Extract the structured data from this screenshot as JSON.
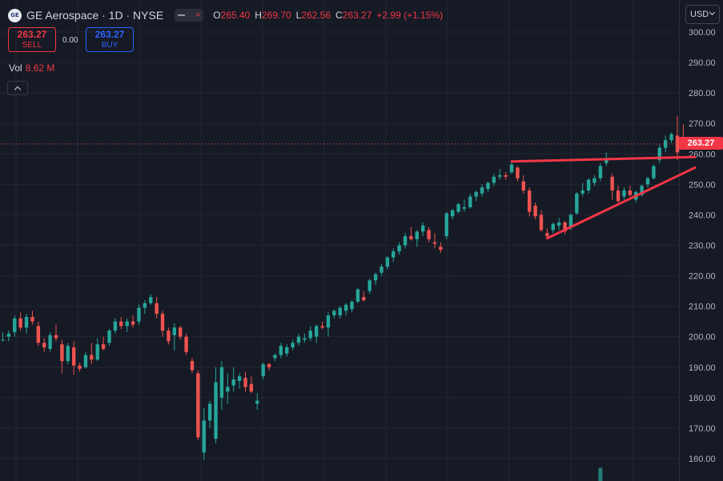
{
  "header": {
    "logo_text": "GE",
    "symbol": "GE Aerospace · 1D · NYSE",
    "ohlc": {
      "o_label": "O",
      "o_value": "265.40",
      "h_label": "H",
      "h_value": "269.70",
      "l_label": "L",
      "l_value": "262.56",
      "c_label": "C",
      "c_value": "263.27",
      "change": "+2.99 (+1.15%)"
    }
  },
  "trade": {
    "sell_price": "263.27",
    "sell_label": "SELL",
    "spread": "0.00",
    "buy_price": "263.27",
    "buy_label": "BUY"
  },
  "volume": {
    "label": "Vol",
    "value": "8.62 M"
  },
  "currency": "USD",
  "last_price_label": "263.27",
  "colors": {
    "up": "#26a69a",
    "down": "#ef5350",
    "drawing": "#f23645",
    "background": "#161a25",
    "grid": "#232632"
  },
  "chart_data": {
    "type": "candlestick",
    "y_ticks": [
      "300.00",
      "290.00",
      "280.00",
      "270.00",
      "260.00",
      "250.00",
      "240.00",
      "230.00",
      "220.00",
      "210.00",
      "200.00",
      "190.00",
      "180.00",
      "170.00",
      "160.00"
    ],
    "ylim": [
      156.5,
      305
    ],
    "last_price": 263.27,
    "candles": [
      [
        199.0,
        201.5,
        198.5,
        199.0
      ],
      [
        200.0,
        202.0,
        198.5,
        201.0
      ],
      [
        201.5,
        207.0,
        200.0,
        206.0
      ],
      [
        206.0,
        208.0,
        202.0,
        203.0
      ],
      [
        203.0,
        207.5,
        201.0,
        206.5
      ],
      [
        206.5,
        208.5,
        204.0,
        205.0
      ],
      [
        203.5,
        205.0,
        197.0,
        198.0
      ],
      [
        198.0,
        199.5,
        195.0,
        196.5
      ],
      [
        196.0,
        201.5,
        195.0,
        200.5
      ],
      [
        200.5,
        204.0,
        198.5,
        199.5
      ],
      [
        197.5,
        199.0,
        188.0,
        192.0
      ],
      [
        192.0,
        198.0,
        191.0,
        197.0
      ],
      [
        196.5,
        198.5,
        187.5,
        190.5
      ],
      [
        190.5,
        191.5,
        188.5,
        189.5
      ],
      [
        190.0,
        195.0,
        189.5,
        194.0
      ],
      [
        194.0,
        198.0,
        191.0,
        192.5
      ],
      [
        192.5,
        199.5,
        192.0,
        197.5
      ],
      [
        197.5,
        200.0,
        195.5,
        196.0
      ],
      [
        198.0,
        202.5,
        197.0,
        202.0
      ],
      [
        202.0,
        206.0,
        201.0,
        205.0
      ],
      [
        205.0,
        206.5,
        202.5,
        203.5
      ],
      [
        203.5,
        206.0,
        201.5,
        205.0
      ],
      [
        205.0,
        207.0,
        203.0,
        204.0
      ],
      [
        205.0,
        210.5,
        204.0,
        209.5
      ],
      [
        209.5,
        212.0,
        207.5,
        211.0
      ],
      [
        211.0,
        214.0,
        210.5,
        213.0
      ],
      [
        211.0,
        213.0,
        206.0,
        207.5
      ],
      [
        207.5,
        208.5,
        200.0,
        202.0
      ],
      [
        202.0,
        203.0,
        197.5,
        198.5
      ],
      [
        200.5,
        204.5,
        195.5,
        203.0
      ],
      [
        203.0,
        203.5,
        199.0,
        200.0
      ],
      [
        200.0,
        201.0,
        194.0,
        195.0
      ],
      [
        192.0,
        193.0,
        188.0,
        189.0
      ],
      [
        188.0,
        189.0,
        166.0,
        167.0
      ],
      [
        162.0,
        176.5,
        159.5,
        172.5
      ],
      [
        172.5,
        179.0,
        170.0,
        178.0
      ],
      [
        166.5,
        190.0,
        165.0,
        185.0
      ],
      [
        180.0,
        192.0,
        176.0,
        190.0
      ],
      [
        182.0,
        188.0,
        178.0,
        183.5
      ],
      [
        184.0,
        190.0,
        182.0,
        186.0
      ],
      [
        185.5,
        188.0,
        183.0,
        187.0
      ],
      [
        186.5,
        188.5,
        182.0,
        183.5
      ],
      [
        184.5,
        187.0,
        181.5,
        182.0
      ],
      [
        178.0,
        181.5,
        176.0,
        179.0
      ],
      [
        187.0,
        191.5,
        186.0,
        191.0
      ],
      [
        191.0,
        191.5,
        189.0,
        190.0
      ],
      [
        193.0,
        194.5,
        192.0,
        194.0
      ],
      [
        194.0,
        198.0,
        193.0,
        197.0
      ],
      [
        194.5,
        197.5,
        193.5,
        196.5
      ],
      [
        196.5,
        199.0,
        195.5,
        198.0
      ],
      [
        198.0,
        201.0,
        197.0,
        200.0
      ],
      [
        199.0,
        201.0,
        198.0,
        199.5
      ],
      [
        199.5,
        203.5,
        198.5,
        202.0
      ],
      [
        200.0,
        204.0,
        198.0,
        203.5
      ],
      [
        203.5,
        205.0,
        202.5,
        203.0
      ],
      [
        203.0,
        208.0,
        200.0,
        207.0
      ],
      [
        207.0,
        209.0,
        206.0,
        208.5
      ],
      [
        207.0,
        210.0,
        206.0,
        209.5
      ],
      [
        208.5,
        211.0,
        207.0,
        210.5
      ],
      [
        209.0,
        212.0,
        208.0,
        211.5
      ],
      [
        211.5,
        216.0,
        211.0,
        215.5
      ],
      [
        213.0,
        215.0,
        211.5,
        212.0
      ],
      [
        215.0,
        219.0,
        214.0,
        218.5
      ],
      [
        218.5,
        221.0,
        217.0,
        220.5
      ],
      [
        221.0,
        224.0,
        220.0,
        223.0
      ],
      [
        223.0,
        226.5,
        222.0,
        226.0
      ],
      [
        226.0,
        229.0,
        224.5,
        228.0
      ],
      [
        228.0,
        231.0,
        227.0,
        230.0
      ],
      [
        230.0,
        234.0,
        229.0,
        233.0
      ],
      [
        233.0,
        236.0,
        231.5,
        232.0
      ],
      [
        232.0,
        235.0,
        229.5,
        234.5
      ],
      [
        234.5,
        237.5,
        233.0,
        236.5
      ],
      [
        235.0,
        236.0,
        231.0,
        232.0
      ],
      [
        231.0,
        234.0,
        229.0,
        230.5
      ],
      [
        229.5,
        231.0,
        227.5,
        228.5
      ],
      [
        233.0,
        241.0,
        232.0,
        240.5
      ],
      [
        239.5,
        242.0,
        238.5,
        241.5
      ],
      [
        241.0,
        244.0,
        240.5,
        243.5
      ],
      [
        242.0,
        245.0,
        241.0,
        242.5
      ],
      [
        242.5,
        247.0,
        242.0,
        246.0
      ],
      [
        246.0,
        248.0,
        244.5,
        247.5
      ],
      [
        247.0,
        250.0,
        246.0,
        249.0
      ],
      [
        248.5,
        251.0,
        247.5,
        250.5
      ],
      [
        250.5,
        253.5,
        249.5,
        252.5
      ],
      [
        252.5,
        255.0,
        251.5,
        253.0
      ],
      [
        253.0,
        254.0,
        251.5,
        252.5
      ],
      [
        254.0,
        257.5,
        253.5,
        256.5
      ],
      [
        255.5,
        256.0,
        251.0,
        252.0
      ],
      [
        251.0,
        253.0,
        247.0,
        248.0
      ],
      [
        248.0,
        249.0,
        239.5,
        241.0
      ],
      [
        243.0,
        244.0,
        238.5,
        239.5
      ],
      [
        240.0,
        241.5,
        234.5,
        235.0
      ],
      [
        234.0,
        235.5,
        232.0,
        233.0
      ],
      [
        235.0,
        237.5,
        234.0,
        237.0
      ],
      [
        236.5,
        239.0,
        235.0,
        237.5
      ],
      [
        237.5,
        238.0,
        233.5,
        234.5
      ],
      [
        236.0,
        240.5,
        235.0,
        240.0
      ],
      [
        240.5,
        247.5,
        240.0,
        247.0
      ],
      [
        247.0,
        250.5,
        246.0,
        248.0
      ],
      [
        248.0,
        252.0,
        247.0,
        251.5
      ],
      [
        250.5,
        253.0,
        249.5,
        252.0
      ],
      [
        252.0,
        257.0,
        251.0,
        256.0
      ],
      [
        257.0,
        260.5,
        256.0,
        258.0
      ],
      [
        252.5,
        253.5,
        245.0,
        248.0
      ],
      [
        248.0,
        249.5,
        244.0,
        244.5
      ],
      [
        246.0,
        249.0,
        245.0,
        248.0
      ],
      [
        248.0,
        249.5,
        246.0,
        246.5
      ],
      [
        245.0,
        248.0,
        244.0,
        247.5
      ],
      [
        246.5,
        250.0,
        246.0,
        249.5
      ],
      [
        250.0,
        252.5,
        249.0,
        252.0
      ],
      [
        252.0,
        256.5,
        251.5,
        256.0
      ],
      [
        258.0,
        263.0,
        257.0,
        262.0
      ],
      [
        262.0,
        266.0,
        260.5,
        264.5
      ],
      [
        264.5,
        267.0,
        263.5,
        266.5
      ],
      [
        266.0,
        272.5,
        258.0,
        260.5
      ],
      [
        265.4,
        269.7,
        262.56,
        263.27
      ]
    ],
    "trendlines": [
      {
        "from": {
          "index": 86,
          "price": 257.5
        },
        "to": {
          "index": 117,
          "price": 259.0
        }
      },
      {
        "from": {
          "index": 92,
          "price": 232.3
        },
        "to": {
          "index": 117,
          "price": 255.5
        }
      }
    ],
    "volume_bars": [
      {
        "index": 101,
        "fraction": 0.55
      }
    ],
    "grid": true
  }
}
